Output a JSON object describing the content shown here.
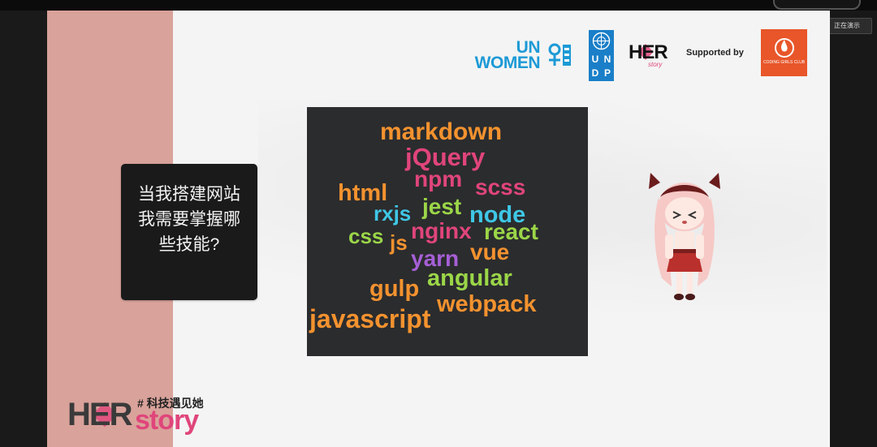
{
  "slide": {
    "question": "当我搭建网站我需要掌握哪些技能?",
    "supported_by": "Supported by"
  },
  "logos": {
    "un_women_line1": "UN",
    "un_women_line2": "WOMEN",
    "undp_letters": [
      "U",
      "N",
      "D",
      "P"
    ],
    "her_logo": "HER",
    "her_logo_sub": "story",
    "coding_girls": "CODING GIRLS CLUB",
    "herstory_her": "HER",
    "herstory_story": "story",
    "herstory_tag": "# 科技遇见她"
  },
  "corner_button": "正在演示",
  "word_cloud": {
    "words": [
      {
        "text": "markdown",
        "color": "#f3922f"
      },
      {
        "text": "jQuery",
        "color": "#e0457b"
      },
      {
        "text": "html",
        "color": "#f3922f"
      },
      {
        "text": "npm",
        "color": "#e0457b"
      },
      {
        "text": "scss",
        "color": "#e0457b"
      },
      {
        "text": "jest",
        "color": "#9bd648"
      },
      {
        "text": "rxjs",
        "color": "#3fc7e6"
      },
      {
        "text": "node",
        "color": "#3fc7e6"
      },
      {
        "text": "css",
        "color": "#9bd648"
      },
      {
        "text": "js",
        "color": "#f3922f"
      },
      {
        "text": "nginx",
        "color": "#e0457b"
      },
      {
        "text": "react",
        "color": "#9bd648"
      },
      {
        "text": "yarn",
        "color": "#a65fd6"
      },
      {
        "text": "vue",
        "color": "#f3922f"
      },
      {
        "text": "gulp",
        "color": "#f3922f"
      },
      {
        "text": "angular",
        "color": "#9bd648"
      },
      {
        "text": "webpack",
        "color": "#f3922f"
      },
      {
        "text": "javascript",
        "color": "#f3922f"
      }
    ]
  },
  "colors": {
    "pink_band": "#d9a29a",
    "brand_pink": "#e0457b",
    "un_blue": "#1d9ad6",
    "undp_blue": "#1a7fc8",
    "coding_orange": "#e8562a"
  }
}
